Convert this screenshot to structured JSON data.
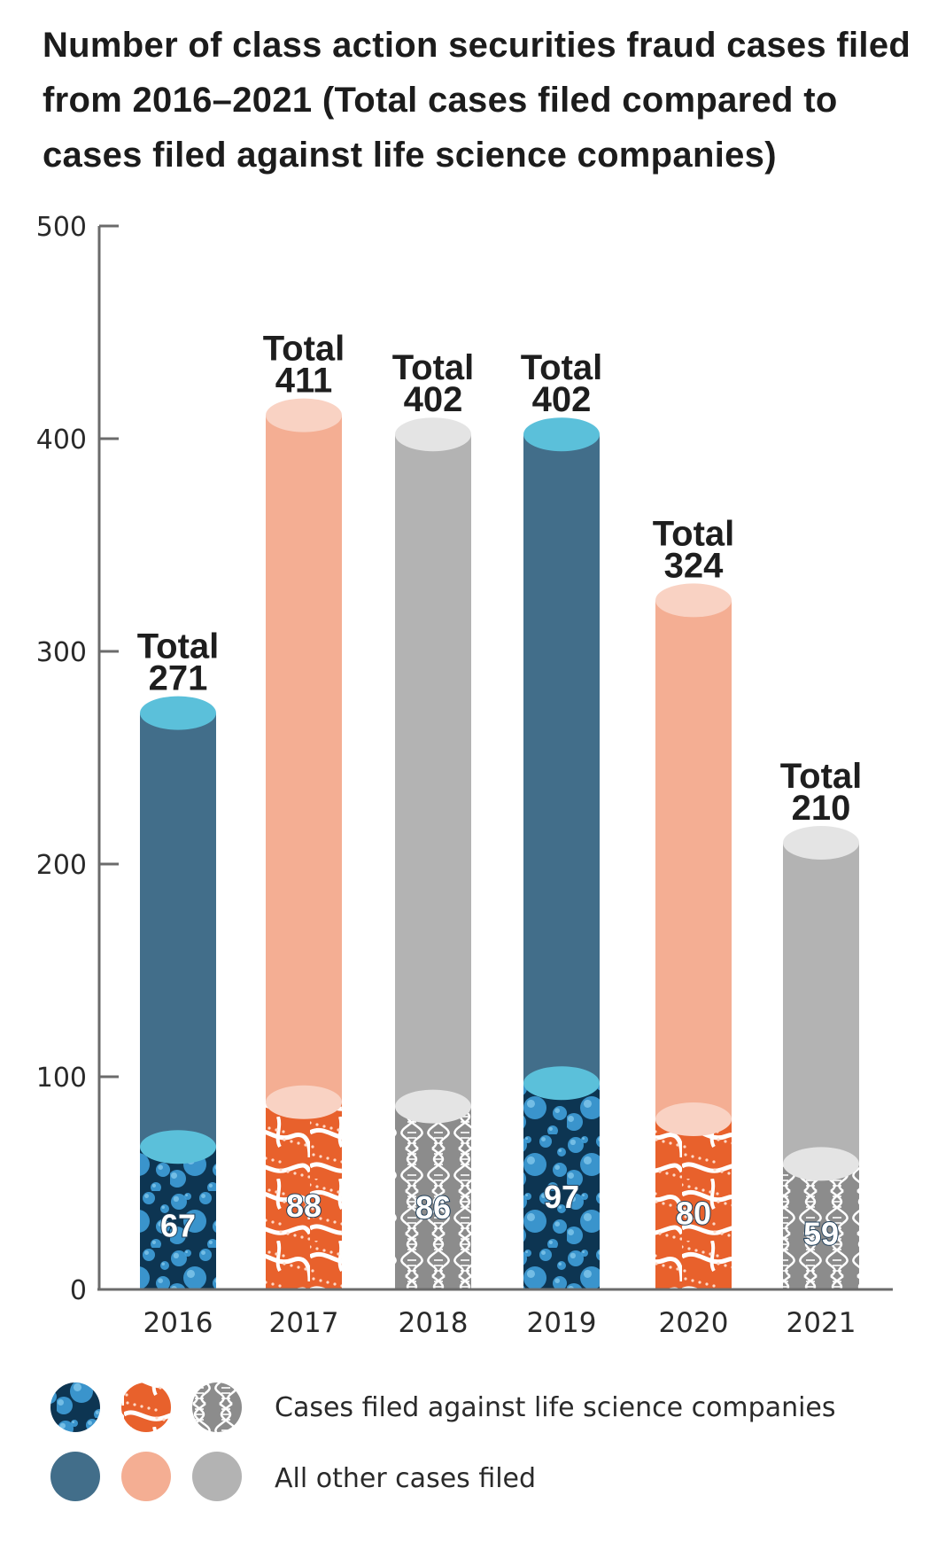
{
  "chart_data": {
    "type": "bar",
    "title": "Number of class action securities fraud cases filed from 2016–2021 (Total cases filed compared to cases filed against life science companies)",
    "categories": [
      "2016",
      "2017",
      "2018",
      "2019",
      "2020",
      "2021"
    ],
    "total_prefix": "Total",
    "totals": [
      271,
      411,
      402,
      402,
      324,
      210
    ],
    "series": [
      {
        "name": "Cases filed against life science companies",
        "values": [
          67,
          88,
          86,
          97,
          80,
          59
        ]
      },
      {
        "name": "All other cases filed",
        "values": [
          204,
          323,
          316,
          305,
          244,
          151
        ]
      }
    ],
    "ylim": [
      0,
      500
    ],
    "yticks": [
      0,
      100,
      200,
      300,
      400,
      500
    ],
    "grid": false,
    "legend_placement": "bottom",
    "colors": {
      "blue_body": "#426e8a",
      "blue_top": "#5bc0da",
      "blue_pattern_bg": "#0d3552",
      "blue_bubble": "#3f9fda",
      "orange_body": "#f4ae93",
      "orange_top": "#f9d2c3",
      "orange_pattern_bg": "#e8612c",
      "orange_line": "#ffffff",
      "gray_body": "#b3b3b3",
      "gray_top": "#e4e4e4",
      "gray_pattern_bg": "#8c8c8c",
      "gray_helix": "#ffffff"
    },
    "bar_color_cycle": [
      "blue",
      "orange",
      "gray",
      "blue",
      "orange",
      "gray"
    ]
  },
  "legend": {
    "life_science_label": "Cases filed against life science companies",
    "other_label": "All other cases filed"
  }
}
